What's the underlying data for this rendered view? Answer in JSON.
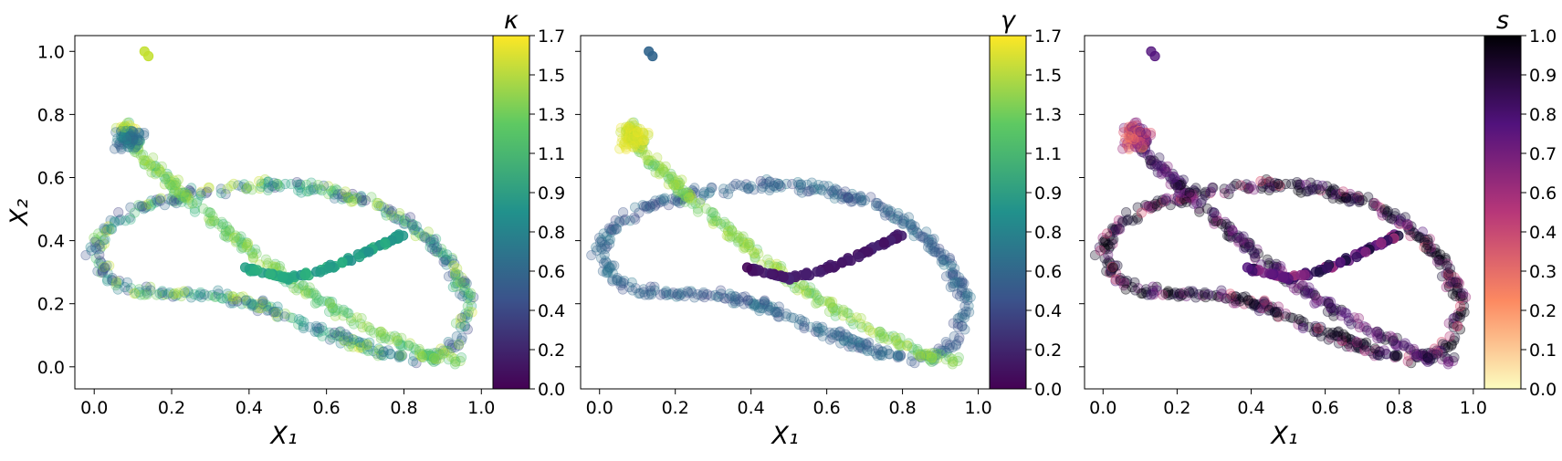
{
  "chart_data": [
    {
      "type": "scatter",
      "panel": "left",
      "xlabel": "X₁",
      "ylabel": "X₂",
      "xlim": [
        -0.05,
        1.03
      ],
      "ylim": [
        -0.07,
        1.05
      ],
      "xticks": [
        "0.0",
        "0.2",
        "0.4",
        "0.6",
        "0.8",
        "1.0"
      ],
      "yticks": [
        "0.0",
        "0.2",
        "0.4",
        "0.6",
        "0.8",
        "1.0"
      ],
      "colorbar": {
        "title": "κ",
        "cmap": "viridis",
        "range": [
          0.0,
          1.7
        ],
        "ticks": [
          "0.0",
          "0.2",
          "0.4",
          "0.6",
          "0.8",
          "0.9",
          "1.1",
          "1.3",
          "1.5",
          "1.7"
        ]
      },
      "color_field": "kappa",
      "alpha": 0.2
    },
    {
      "type": "scatter",
      "panel": "middle",
      "xlabel": "X₁",
      "ylabel": "",
      "xlim": [
        -0.05,
        1.03
      ],
      "ylim": [
        -0.07,
        1.05
      ],
      "xticks": [
        "0.0",
        "0.2",
        "0.4",
        "0.6",
        "0.8",
        "1.0"
      ],
      "yticks": [],
      "colorbar": {
        "title": "γ",
        "cmap": "viridis",
        "range": [
          0.0,
          1.7
        ],
        "ticks": [
          "0.0",
          "0.2",
          "0.4",
          "0.6",
          "0.8",
          "0.9",
          "1.1",
          "1.3",
          "1.5",
          "1.7"
        ]
      },
      "color_field": "gamma",
      "alpha": 0.2
    },
    {
      "type": "scatter",
      "panel": "right",
      "xlabel": "X₁",
      "ylabel": "",
      "xlim": [
        -0.05,
        1.03
      ],
      "ylim": [
        -0.07,
        1.05
      ],
      "xticks": [
        "0.0",
        "0.2",
        "0.4",
        "0.6",
        "0.8",
        "1.0"
      ],
      "yticks": [],
      "colorbar": {
        "title": "s",
        "cmap": "magma_r",
        "range": [
          0.0,
          1.0
        ],
        "ticks": [
          "0.0",
          "0.1",
          "0.2",
          "0.3",
          "0.4",
          "0.6",
          "0.7",
          "0.8",
          "0.9",
          "1.0"
        ]
      },
      "color_field": "s",
      "alpha": 0.2
    }
  ],
  "curves": {
    "ring": [
      [
        0.0,
        0.36
      ],
      [
        0.02,
        0.42
      ],
      [
        0.06,
        0.47
      ],
      [
        0.15,
        0.52
      ],
      [
        0.3,
        0.56
      ],
      [
        0.45,
        0.58
      ],
      [
        0.6,
        0.56
      ],
      [
        0.72,
        0.52
      ],
      [
        0.83,
        0.44
      ],
      [
        0.92,
        0.33
      ],
      [
        0.97,
        0.2
      ],
      [
        0.95,
        0.09
      ],
      [
        0.88,
        0.03
      ],
      [
        0.78,
        0.03
      ],
      [
        0.68,
        0.07
      ],
      [
        0.56,
        0.13
      ],
      [
        0.44,
        0.19
      ],
      [
        0.32,
        0.23
      ],
      [
        0.2,
        0.23
      ],
      [
        0.1,
        0.24
      ],
      [
        0.03,
        0.28
      ],
      [
        0.0,
        0.36
      ]
    ],
    "diagonal": [
      [
        0.08,
        0.76
      ],
      [
        0.12,
        0.68
      ],
      [
        0.2,
        0.58
      ],
      [
        0.3,
        0.47
      ],
      [
        0.4,
        0.37
      ],
      [
        0.5,
        0.28
      ],
      [
        0.6,
        0.2
      ],
      [
        0.7,
        0.13
      ],
      [
        0.8,
        0.07
      ],
      [
        0.88,
        0.03
      ],
      [
        0.95,
        0.02
      ]
    ],
    "blob": [
      0.09,
      0.73,
      0.04,
      0.045
    ],
    "chord": [
      [
        0.4,
        0.31
      ],
      [
        0.5,
        0.28
      ],
      [
        0.6,
        0.31
      ],
      [
        0.7,
        0.36
      ],
      [
        0.8,
        0.42
      ]
    ],
    "outliers": [
      [
        0.13,
        1.0
      ],
      [
        0.14,
        0.985
      ],
      [
        0.39,
        0.315
      ]
    ]
  }
}
